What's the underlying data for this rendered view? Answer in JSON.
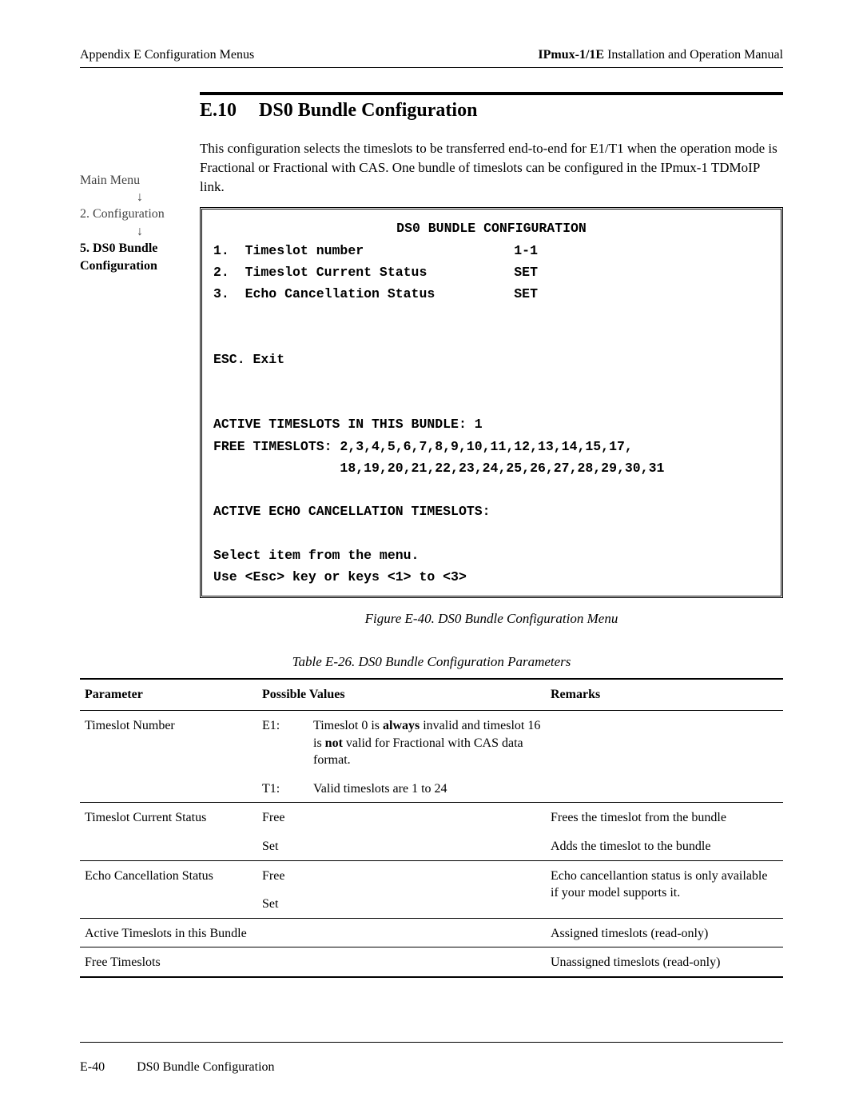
{
  "header": {
    "left": "Appendix E  Configuration Menus",
    "right_bold": "IPmux-1/1E",
    "right_rest": " Installation and Operation Manual"
  },
  "nav": {
    "item1": "Main Menu",
    "item2": "2. Configuration",
    "item3_bold": "5. DS0 Bundle Configuration"
  },
  "section": {
    "number": "E.10",
    "title": "DS0 Bundle Configuration",
    "intro": "This configuration selects the timeslots to be transferred end-to-end for E1/T1 when the operation mode is Fractional or Fractional with CAS. One bundle of timeslots can be configured in the IPmux-1 TDMoIP link."
  },
  "terminal": {
    "title": "DS0 BUNDLE CONFIGURATION",
    "row1_label": "1.  Timeslot number",
    "row1_val": "1-1",
    "row2_label": "2.  Timeslot Current Status",
    "row2_val": "SET",
    "row3_label": "3.  Echo Cancellation Status",
    "row3_val": "SET",
    "esc": "ESC. Exit",
    "active_line": "ACTIVE TIMESLOTS IN THIS BUNDLE: 1",
    "free_line1": "FREE TIMESLOTS: 2,3,4,5,6,7,8,9,10,11,12,13,14,15,17,",
    "free_line2": "                18,19,20,21,22,23,24,25,26,27,28,29,30,31",
    "echo_line": "ACTIVE ECHO CANCELLATION TIMESLOTS:",
    "select_line": "Select item from the menu.",
    "use_line": "Use <Esc> key or keys <1> to <3>"
  },
  "figure_caption": "Figure E-40.  DS0 Bundle Configuration Menu",
  "table_caption": "Table E-26.  DS0 Bundle Configuration Parameters",
  "table": {
    "headers": {
      "c1": "Parameter",
      "c2": "Possible Values",
      "c3": "Remarks"
    },
    "r1": {
      "param": "Timeslot Number",
      "pv1_label": "E1:",
      "pv1_pre": "Timeslot 0 is ",
      "pv1_bold1": "always",
      "pv1_mid": " invalid and timeslot 16 is ",
      "pv1_bold2": "not",
      "pv1_post": " valid for Fractional with CAS data format.",
      "pv2_label": "T1:",
      "pv2_desc": "Valid timeslots are 1 to 24",
      "remarks": ""
    },
    "r2": {
      "param": "Timeslot Current Status",
      "pv1": "Free",
      "rem1": "Frees the timeslot from the bundle",
      "pv2": "Set",
      "rem2": "Adds the timeslot to the bundle"
    },
    "r3": {
      "param": "Echo Cancellation Status",
      "pv1": "Free",
      "rem": "Echo cancellantion status is only available if your model supports it.",
      "pv2": "Set"
    },
    "r4": {
      "param": "Active Timeslots in this Bundle",
      "remarks": "Assigned timeslots (read-only)"
    },
    "r5": {
      "param": "Free Timeslots",
      "remarks": "Unassigned timeslots (read-only)"
    }
  },
  "footer": {
    "page_num": "E-40",
    "title": "DS0 Bundle Configuration"
  }
}
